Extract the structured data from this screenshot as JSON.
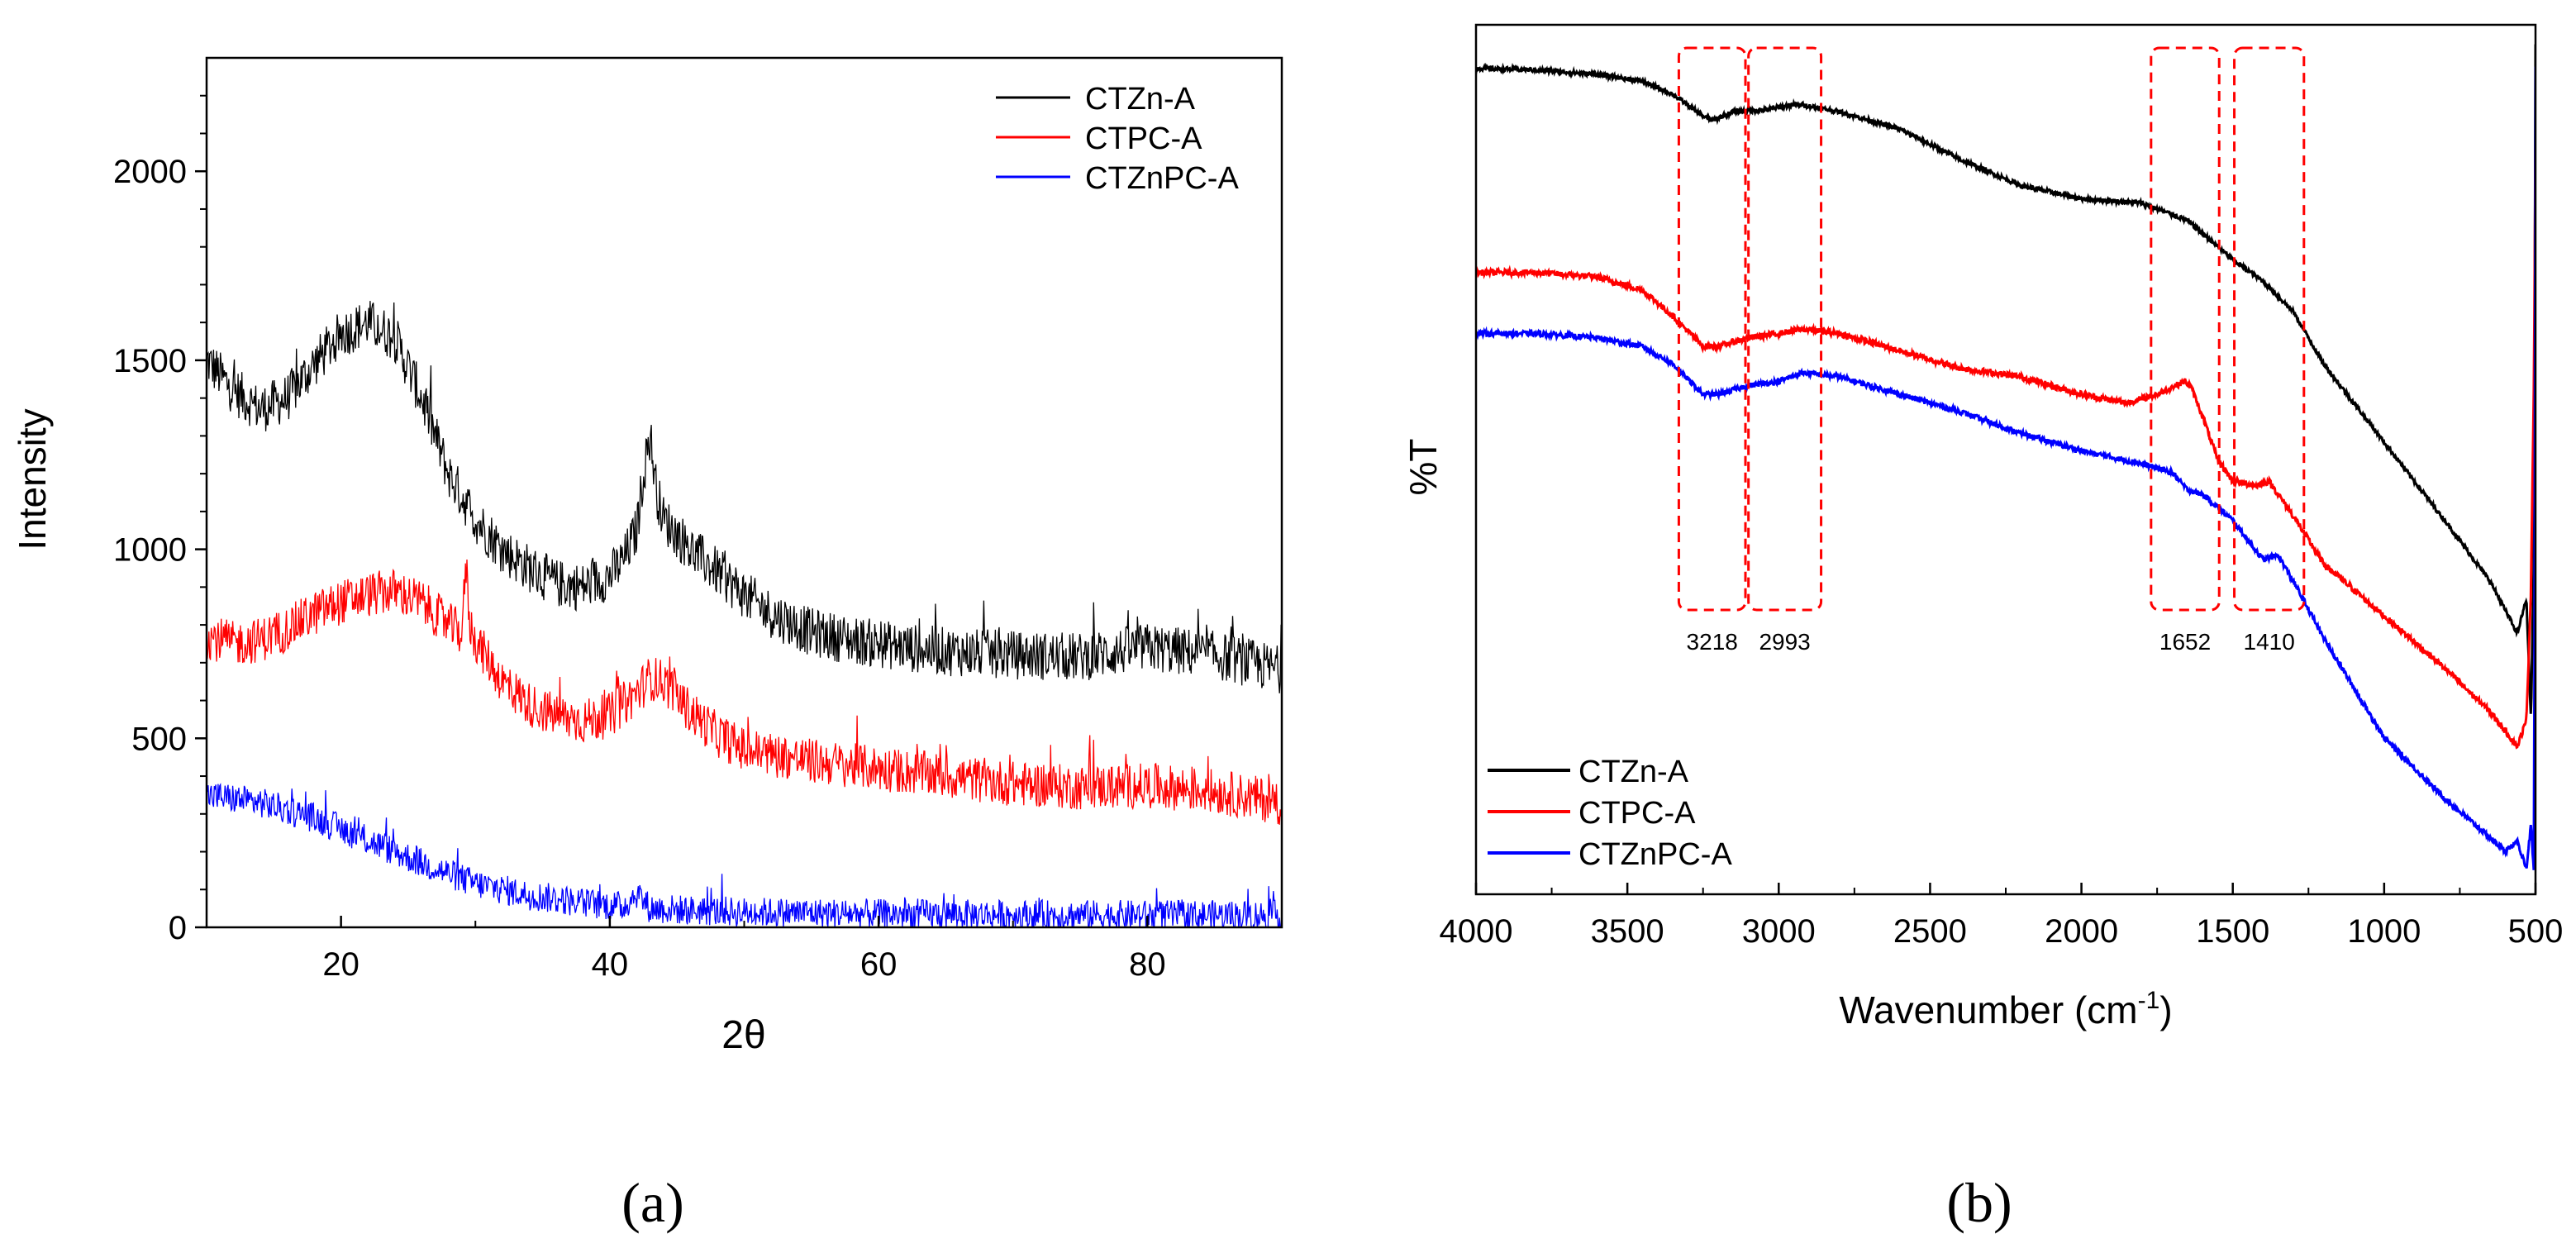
{
  "figure": {
    "panel_a_caption": "(a)",
    "panel_b_caption": "(b)"
  },
  "colors": {
    "series_black": "#000000",
    "series_red": "#ff0000",
    "series_blue": "#0000ff",
    "annotation_box": "#ff0000",
    "background": "#ffffff"
  },
  "chart_data": [
    {
      "id": "a",
      "type": "line",
      "title": "",
      "xlabel": "2θ",
      "ylabel": "Intensity",
      "xlim": [
        10,
        90
      ],
      "ylim": [
        0,
        2300
      ],
      "xticks": [
        20,
        40,
        60,
        80
      ],
      "xtick_labels": [
        "20",
        "40",
        "60",
        "80"
      ],
      "yticks": [
        0,
        500,
        1000,
        1500,
        2000
      ],
      "ytick_labels": [
        "0",
        "500",
        "1000",
        "1500",
        "2000"
      ],
      "legend_position": "top-right",
      "grid": false,
      "series": [
        {
          "name": "CTZn-A",
          "color": "#000000",
          "noise": 65,
          "x": [
            10,
            12,
            14,
            16,
            18,
            20,
            22,
            24,
            26,
            28,
            30,
            32,
            34,
            36,
            38,
            40,
            41,
            42,
            42.5,
            43,
            43.5,
            44,
            45,
            46,
            48,
            50,
            52,
            55,
            58,
            60,
            62,
            65,
            70,
            75,
            80,
            85,
            90
          ],
          "values": [
            1500,
            1420,
            1370,
            1400,
            1490,
            1570,
            1600,
            1560,
            1400,
            1200,
            1080,
            1000,
            950,
            910,
            900,
            930,
            970,
            1050,
            1200,
            1300,
            1150,
            1080,
            1040,
            1000,
            940,
            880,
            830,
            780,
            760,
            750,
            740,
            730,
            720,
            715,
            740,
            720,
            680
          ]
        },
        {
          "name": "CTPC-A",
          "color": "#ff0000",
          "noise": 60,
          "x": [
            10,
            12,
            14,
            16,
            18,
            20,
            22,
            24,
            26,
            28,
            29,
            29.3,
            29.6,
            30,
            32,
            34,
            36,
            38,
            40,
            42,
            43,
            44,
            46,
            48,
            50,
            55,
            60,
            65,
            70,
            75,
            80,
            85,
            90
          ],
          "values": [
            770,
            750,
            760,
            790,
            830,
            860,
            880,
            890,
            860,
            800,
            780,
            960,
            800,
            760,
            650,
            590,
            560,
            545,
            560,
            620,
            660,
            650,
            570,
            510,
            470,
            440,
            420,
            400,
            380,
            370,
            375,
            360,
            330
          ]
        },
        {
          "name": "CTZnPC-A",
          "color": "#0000ff",
          "noise": 40,
          "x": [
            10,
            14,
            18,
            22,
            26,
            30,
            34,
            38,
            41,
            42,
            43,
            46,
            50,
            55,
            60,
            70,
            80,
            90
          ],
          "values": [
            350,
            330,
            290,
            230,
            170,
            115,
            85,
            65,
            55,
            90,
            50,
            45,
            40,
            38,
            35,
            33,
            32,
            32
          ]
        }
      ]
    },
    {
      "id": "b",
      "type": "line",
      "title": "",
      "xlabel": "Wavenumber (cm",
      "xlabel_sup": "-1",
      "xlabel_close": ")",
      "ylabel": "%T",
      "xlim": [
        4000,
        500
      ],
      "ylim": [
        0,
        100
      ],
      "xticks": [
        4000,
        3500,
        3000,
        2500,
        2000,
        1500,
        1000,
        500
      ],
      "xtick_labels": [
        "4000",
        "3500",
        "3000",
        "2500",
        "2000",
        "1500",
        "1000",
        "500"
      ],
      "legend_position": "bottom-left",
      "grid": false,
      "annotations": [
        {
          "label": "3218",
          "x_start": 3330,
          "x_end": 3110
        },
        {
          "label": "2993",
          "x_start": 3100,
          "x_end": 2860
        },
        {
          "label": "1652",
          "x_start": 1770,
          "x_end": 1545
        },
        {
          "label": "1410",
          "x_start": 1495,
          "x_end": 1265
        }
      ],
      "series": [
        {
          "name": "CTZn-A",
          "color": "#000000",
          "noise": 0.25,
          "x": [
            4000,
            3800,
            3600,
            3450,
            3350,
            3250,
            3220,
            3150,
            3050,
            2950,
            2920,
            2800,
            2600,
            2400,
            2200,
            2000,
            1800,
            1650,
            1600,
            1500,
            1400,
            1300,
            1200,
            1000,
            800,
            650,
            560,
            530,
            515,
            505,
            500
          ],
          "values": [
            95,
            94.8,
            94.3,
            93.5,
            92,
            89.5,
            89,
            90,
            90.2,
            90.8,
            90.8,
            90,
            88,
            84.5,
            81.5,
            80,
            79.5,
            77.5,
            76,
            73,
            70.5,
            67,
            61,
            52,
            43,
            36,
            30,
            34,
            20,
            40,
            98
          ]
        },
        {
          "name": "CTPC-A",
          "color": "#ff0000",
          "noise": 0.35,
          "x": [
            4000,
            3800,
            3600,
            3450,
            3350,
            3250,
            3200,
            3100,
            3000,
            2920,
            2800,
            2600,
            2400,
            2200,
            2000,
            1850,
            1750,
            1660,
            1640,
            1600,
            1550,
            1500,
            1420,
            1380,
            1300,
            1200,
            1000,
            800,
            650,
            560,
            530,
            515,
            505,
            500
          ],
          "values": [
            71.5,
            71.5,
            71,
            69.5,
            66.5,
            63,
            63,
            64,
            64.5,
            65,
            64.5,
            62.5,
            60.5,
            59.5,
            57.5,
            56.5,
            57.5,
            59,
            58.5,
            55,
            50,
            47.5,
            47,
            47.5,
            43.5,
            38,
            32,
            26,
            21,
            17,
            20,
            35,
            60,
            87
          ]
        },
        {
          "name": "CTZnPC-A",
          "color": "#0000ff",
          "noise": 0.3,
          "x": [
            4000,
            3800,
            3600,
            3450,
            3350,
            3250,
            3200,
            3100,
            3000,
            2920,
            2800,
            2600,
            2400,
            2200,
            2000,
            1800,
            1700,
            1650,
            1600,
            1500,
            1400,
            1350,
            1300,
            1200,
            1000,
            900,
            800,
            700,
            600,
            560,
            530,
            515,
            505,
            500
          ],
          "values": [
            64.5,
            64.5,
            64,
            63,
            61,
            57.5,
            57.5,
            58.5,
            59,
            60,
            59.5,
            57.5,
            55.5,
            53,
            51,
            49.5,
            48.5,
            46.5,
            46,
            43,
            38.5,
            39,
            36,
            29.5,
            18,
            14.5,
            11,
            8,
            5,
            6,
            3,
            8,
            2,
            95
          ]
        }
      ]
    }
  ]
}
